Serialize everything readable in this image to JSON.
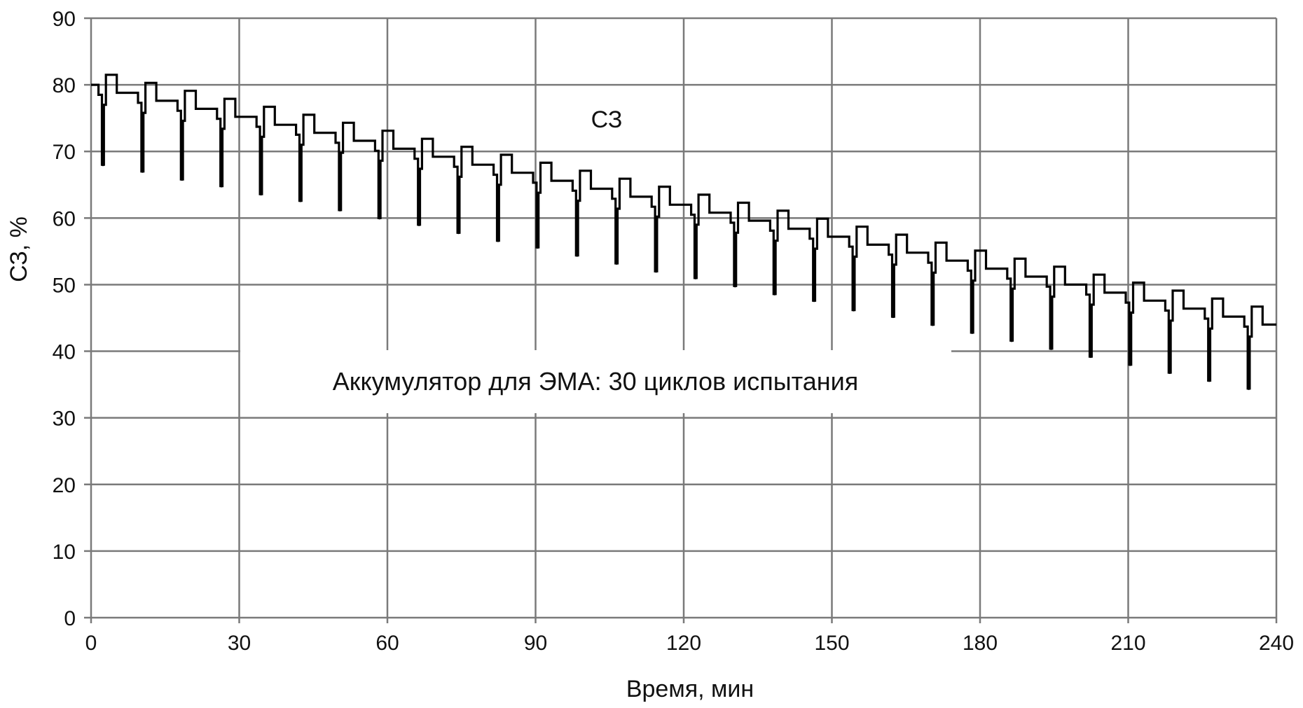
{
  "chart_data": {
    "type": "line",
    "title": "",
    "xlabel": "Время, мин",
    "ylabel": "СЗ, %",
    "xlim": [
      0,
      240
    ],
    "ylim": [
      0,
      90
    ],
    "xticks": [
      0,
      30,
      60,
      90,
      120,
      150,
      180,
      210,
      240
    ],
    "yticks": [
      0,
      10,
      20,
      30,
      40,
      50,
      60,
      70,
      80,
      90
    ],
    "grid": true,
    "legend": "none",
    "line_color": "#000000",
    "grid_color": "#7a7a7a",
    "annotations": [
      {
        "text": "СЗ"
      },
      {
        "text": "Аккумулятор для ЭМА: 30 циклов испытания"
      }
    ],
    "cycles": [
      {
        "start": 0,
        "high": 80.0,
        "low": 68.0
      },
      {
        "start": 8,
        "high": 78.8,
        "low": 67.0
      },
      {
        "start": 16,
        "high": 77.6,
        "low": 65.8
      },
      {
        "start": 24,
        "high": 76.4,
        "low": 64.8
      },
      {
        "start": 32,
        "high": 75.2,
        "low": 63.6
      },
      {
        "start": 40,
        "high": 74.0,
        "low": 62.6
      },
      {
        "start": 48,
        "high": 72.8,
        "low": 61.2
      },
      {
        "start": 56,
        "high": 71.6,
        "low": 60.0
      },
      {
        "start": 64,
        "high": 70.4,
        "low": 59.0
      },
      {
        "start": 72,
        "high": 69.2,
        "low": 57.8
      },
      {
        "start": 80,
        "high": 68.0,
        "low": 56.6
      },
      {
        "start": 88,
        "high": 66.8,
        "low": 55.6
      },
      {
        "start": 96,
        "high": 65.6,
        "low": 54.4
      },
      {
        "start": 104,
        "high": 64.4,
        "low": 53.2
      },
      {
        "start": 112,
        "high": 63.2,
        "low": 52.0
      },
      {
        "start": 120,
        "high": 62.0,
        "low": 51.0
      },
      {
        "start": 128,
        "high": 60.8,
        "low": 49.8
      },
      {
        "start": 136,
        "high": 59.6,
        "low": 48.6
      },
      {
        "start": 144,
        "high": 58.4,
        "low": 47.6
      },
      {
        "start": 152,
        "high": 57.2,
        "low": 46.2
      },
      {
        "start": 160,
        "high": 56.0,
        "low": 45.2
      },
      {
        "start": 168,
        "high": 54.8,
        "low": 44.0
      },
      {
        "start": 176,
        "high": 53.6,
        "low": 42.8
      },
      {
        "start": 184,
        "high": 52.4,
        "low": 41.6
      },
      {
        "start": 192,
        "high": 51.2,
        "low": 40.4
      },
      {
        "start": 200,
        "high": 50.0,
        "low": 39.2
      },
      {
        "start": 208,
        "high": 48.8,
        "low": 38.0
      },
      {
        "start": 216,
        "high": 47.6,
        "low": 36.8
      },
      {
        "start": 224,
        "high": 46.4,
        "low": 35.6
      },
      {
        "start": 232,
        "high": 45.2,
        "low": 34.4
      }
    ]
  }
}
